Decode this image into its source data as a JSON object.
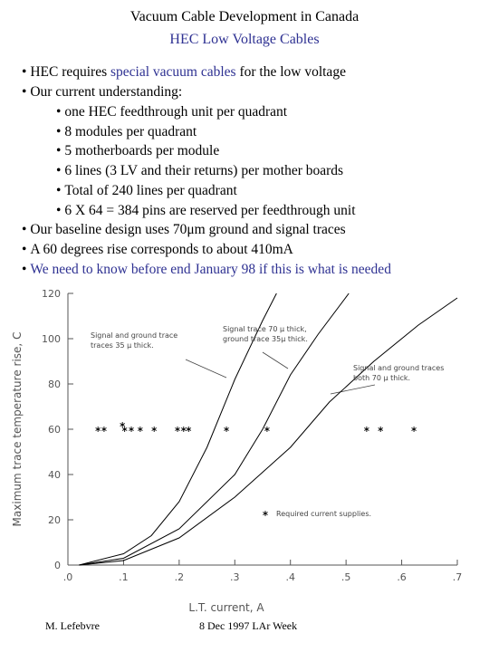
{
  "header": {
    "title": "Vacuum Cable Development in Canada",
    "subtitle": "HEC Low Voltage Cables"
  },
  "bullets": [
    [
      "HEC requires ",
      "special vacuum cables",
      " for the low voltage"
    ],
    [
      "Our current understanding:"
    ],
    [
      "one HEC feedthrough unit per quadrant"
    ],
    [
      "8 modules per quadrant"
    ],
    [
      "5 motherboards per module"
    ],
    [
      "6 lines (3 LV and their returns) per mother boards"
    ],
    [
      "Total of 240 lines per quadrant"
    ],
    [
      "6 X 64 = 384 pins are reserved per feedthrough unit"
    ],
    [
      "Our baseline design uses 70μm ground and signal traces"
    ],
    [
      "A 60 degrees rise corresponds to about 410mA"
    ],
    [
      "We need to know before end January 98 if this is what is needed"
    ]
  ],
  "chart_data": {
    "type": "line",
    "x_label": "L.T. current, A",
    "y_label": "Maximum trace temperature rise, C",
    "xlim": [
      0,
      0.7
    ],
    "ylim": [
      0,
      120
    ],
    "xticks": [
      {
        "value": 0,
        "label": ".0"
      },
      {
        "value": 0.1,
        "label": ".1"
      },
      {
        "value": 0.2,
        "label": ".2"
      },
      {
        "value": 0.3,
        "label": ".3"
      },
      {
        "value": 0.4,
        "label": ".4"
      },
      {
        "value": 0.5,
        "label": ".5"
      },
      {
        "value": 0.6,
        "label": ".6"
      },
      {
        "value": 0.7,
        "label": ".7"
      }
    ],
    "yticks": [
      0,
      20,
      40,
      60,
      80,
      100,
      120
    ],
    "series": [
      {
        "name": "Signal and ground trace\ntraces 35 μ thick.",
        "color": "#000000",
        "x": [
          0.02,
          0.1,
          0.15,
          0.2,
          0.25,
          0.3,
          0.35,
          0.375
        ],
        "values": [
          0,
          5,
          13,
          28,
          52,
          82,
          108,
          120
        ]
      },
      {
        "name": "Signal trace 70 μ thick,\nground trace 35μ thick.",
        "color": "#000000",
        "x": [
          0.02,
          0.1,
          0.2,
          0.3,
          0.35,
          0.4,
          0.45,
          0.505
        ],
        "values": [
          0,
          3,
          16,
          40,
          60,
          84,
          102,
          120
        ]
      },
      {
        "name": "Signal and ground traces\nboth 70 μ thick.",
        "color": "#000000",
        "x": [
          0.02,
          0.1,
          0.2,
          0.3,
          0.4,
          0.47,
          0.55,
          0.63,
          0.7
        ],
        "values": [
          0,
          2,
          12,
          30,
          52,
          72,
          90,
          106,
          118
        ]
      },
      {
        "name": "Required current supplies.",
        "type": "scatter",
        "color": "#000000",
        "x": [
          0.054,
          0.065,
          0.098,
          0.102,
          0.114,
          0.13,
          0.155,
          0.197,
          0.208,
          0.217,
          0.285,
          0.358,
          0.537,
          0.562,
          0.622
        ],
        "values": [
          60,
          60,
          62,
          60,
          60,
          60,
          60,
          60,
          60,
          60,
          60,
          60,
          60,
          60,
          60
        ]
      }
    ]
  },
  "footer": {
    "author": "M. Lefebvre",
    "date": "8 Dec 1997 LAr Week"
  }
}
